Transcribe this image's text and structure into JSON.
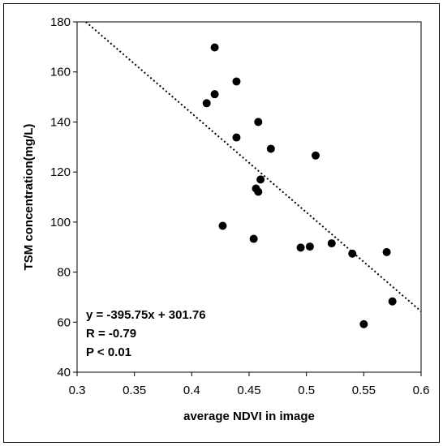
{
  "chart_data": {
    "type": "scatter",
    "xlabel": "average NDVI in image",
    "ylabel": "TSM concentration(mg/L)",
    "xlim": [
      0.3,
      0.6
    ],
    "ylim": [
      40,
      180
    ],
    "xticks": [
      "0.3",
      "0.35",
      "0.4",
      "0.45",
      "0.5",
      "0.55",
      "0.6"
    ],
    "yticks": [
      "40",
      "60",
      "80",
      "100",
      "120",
      "140",
      "160",
      "180"
    ],
    "points": [
      {
        "x": 0.42,
        "y": 169.8
      },
      {
        "x": 0.42,
        "y": 151.1
      },
      {
        "x": 0.413,
        "y": 147.5
      },
      {
        "x": 0.439,
        "y": 156.2
      },
      {
        "x": 0.458,
        "y": 140.0
      },
      {
        "x": 0.439,
        "y": 133.8
      },
      {
        "x": 0.469,
        "y": 129.3
      },
      {
        "x": 0.508,
        "y": 126.6
      },
      {
        "x": 0.46,
        "y": 117.0
      },
      {
        "x": 0.456,
        "y": 113.4
      },
      {
        "x": 0.458,
        "y": 112.1
      },
      {
        "x": 0.427,
        "y": 98.5
      },
      {
        "x": 0.454,
        "y": 93.3
      },
      {
        "x": 0.495,
        "y": 89.8
      },
      {
        "x": 0.503,
        "y": 90.2
      },
      {
        "x": 0.522,
        "y": 91.5
      },
      {
        "x": 0.54,
        "y": 87.4
      },
      {
        "x": 0.57,
        "y": 88.0
      },
      {
        "x": 0.575,
        "y": 68.3
      },
      {
        "x": 0.55,
        "y": 59.2
      }
    ],
    "trendline": {
      "slope": -395.75,
      "intercept": 301.76,
      "style": "dotted"
    },
    "annotations": [
      "y = -395.75x + 301.76",
      "R = -0.79",
      "P < 0.01"
    ],
    "grid": false,
    "marker_color": "#000000"
  }
}
